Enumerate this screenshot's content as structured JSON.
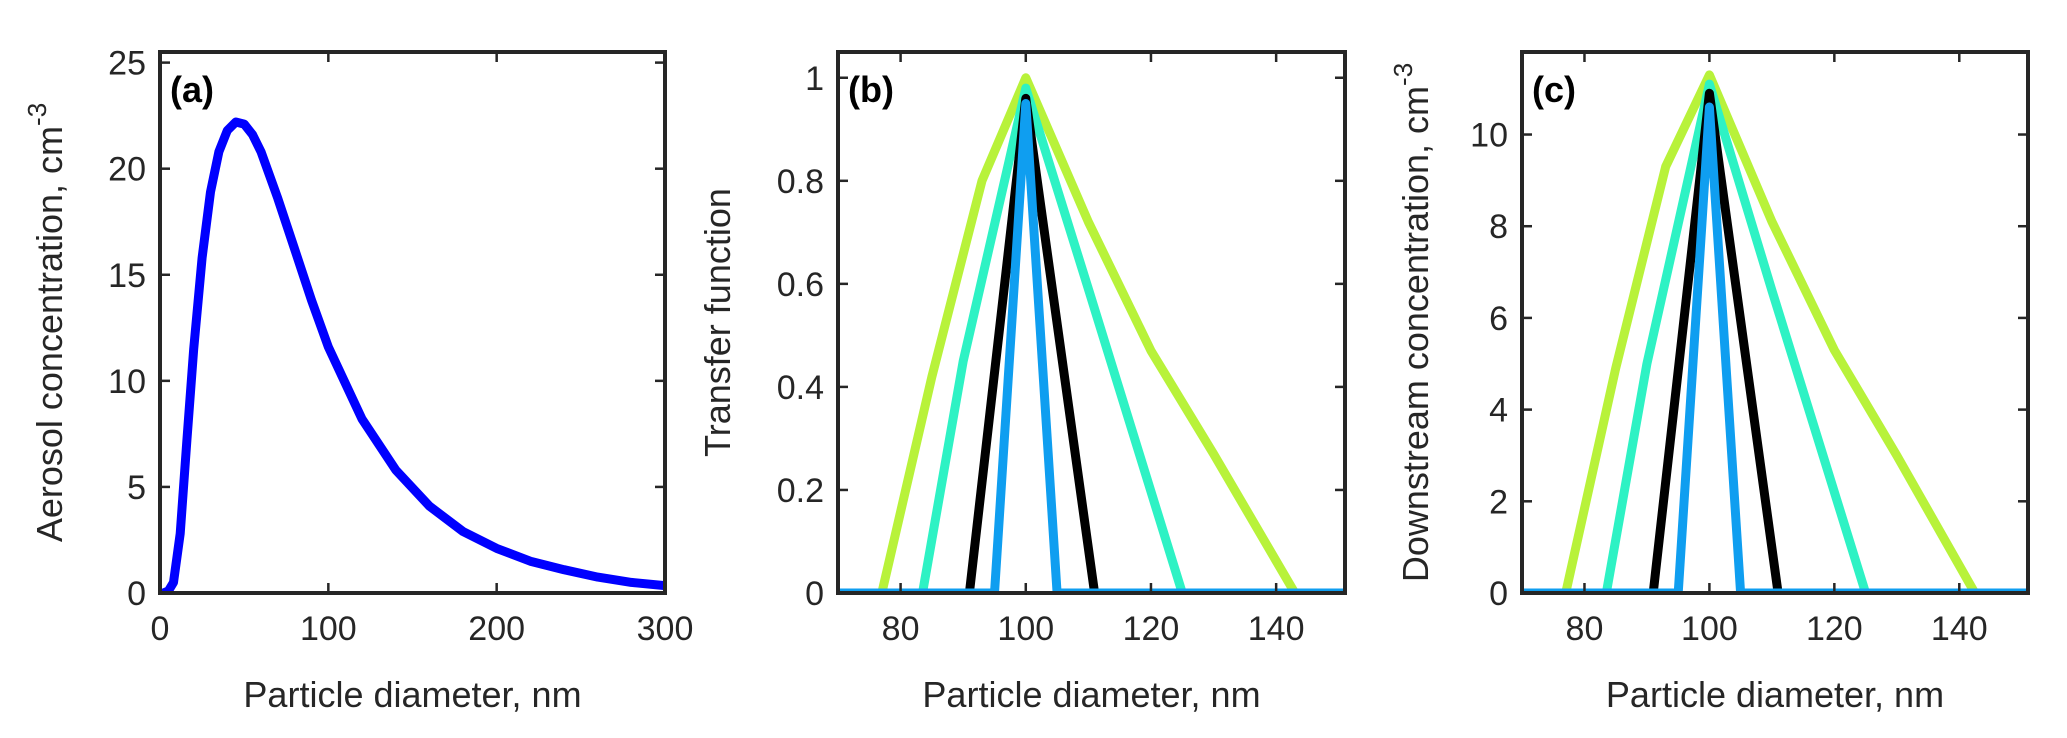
{
  "chart_data": [
    {
      "type": "line",
      "panel_label": "(a)",
      "xlabel": "Particle diameter, nm",
      "ylabel": "Aerosol concentration, cm",
      "ylabel_sup": "-3",
      "xlim": [
        0,
        300
      ],
      "ylim": [
        0,
        25.5
      ],
      "xticks": [
        0,
        100,
        200,
        300
      ],
      "yticks": [
        0,
        5,
        10,
        15,
        20,
        25
      ],
      "grid": false,
      "series": [
        {
          "color": "#0000ff",
          "x": [
            2,
            5,
            8,
            12,
            16,
            20,
            25,
            30,
            35,
            40,
            45,
            50,
            55,
            60,
            70,
            80,
            90,
            100,
            120,
            140,
            160,
            180,
            200,
            220,
            240,
            260,
            280,
            300
          ],
          "y": [
            0,
            0.1,
            0.5,
            2.8,
            7.2,
            11.5,
            15.8,
            18.9,
            20.8,
            21.8,
            22.2,
            22.1,
            21.6,
            20.8,
            18.6,
            16.2,
            13.8,
            11.6,
            8.2,
            5.8,
            4.1,
            2.9,
            2.1,
            1.5,
            1.1,
            0.75,
            0.5,
            0.35
          ]
        }
      ]
    },
    {
      "type": "line",
      "panel_label": "(b)",
      "xlabel": "Particle diameter, nm",
      "ylabel": "Transfer  function",
      "xlim": [
        70,
        151
      ],
      "ylim": [
        0,
        1.05
      ],
      "xticks": [
        80,
        100,
        120,
        140
      ],
      "yticks": [
        0,
        0.2,
        0.4,
        0.6,
        0.8,
        1
      ],
      "ytick_labels": [
        "0",
        "0.2",
        "0.4",
        "0.6",
        "0.8",
        "1"
      ],
      "grid": false,
      "series": [
        {
          "color": "#b8f23a",
          "x": [
            70,
            77,
            85,
            93,
            100,
            110,
            120,
            130,
            143,
            151
          ],
          "y": [
            0,
            0,
            0.42,
            0.8,
            1,
            0.72,
            0.47,
            0.27,
            0,
            0
          ]
        },
        {
          "color": "#2ef2c4",
          "x": [
            70,
            83.5,
            90,
            100,
            110,
            125,
            151
          ],
          "y": [
            0,
            0,
            0.45,
            0.98,
            0.59,
            0,
            0
          ]
        },
        {
          "color": "#000000",
          "x": [
            70,
            91,
            100,
            111,
            151
          ],
          "y": [
            0,
            0,
            0.96,
            0,
            0
          ]
        },
        {
          "color": "#0f9ef0",
          "x": [
            70,
            95,
            100,
            105,
            151
          ],
          "y": [
            0,
            0,
            0.95,
            0,
            0
          ]
        }
      ]
    },
    {
      "type": "line",
      "panel_label": "(c)",
      "xlabel": "Particle diameter, nm",
      "ylabel": "Downstream concentration, cm",
      "ylabel_sup": "-3",
      "xlim": [
        70,
        151
      ],
      "ylim": [
        0,
        11.8
      ],
      "xticks": [
        80,
        100,
        120,
        140
      ],
      "yticks": [
        0,
        2,
        4,
        6,
        8,
        10
      ],
      "grid": false,
      "series": [
        {
          "color": "#b8f23a",
          "x": [
            70,
            77,
            85,
            93,
            100,
            110,
            120,
            130,
            142.5,
            151
          ],
          "y": [
            0,
            0,
            4.9,
            9.3,
            11.3,
            8.1,
            5.3,
            3.0,
            0,
            0
          ]
        },
        {
          "color": "#2ef2c4",
          "x": [
            70,
            83.5,
            90,
            100,
            110,
            125,
            151
          ],
          "y": [
            0,
            0,
            5.0,
            11.1,
            6.6,
            0,
            0
          ]
        },
        {
          "color": "#000000",
          "x": [
            70,
            91,
            100,
            111,
            151
          ],
          "y": [
            0,
            0,
            10.9,
            0,
            0
          ]
        },
        {
          "color": "#0f9ef0",
          "x": [
            70,
            95,
            100,
            105,
            151
          ],
          "y": [
            0,
            0,
            10.6,
            0,
            0
          ]
        }
      ]
    }
  ]
}
